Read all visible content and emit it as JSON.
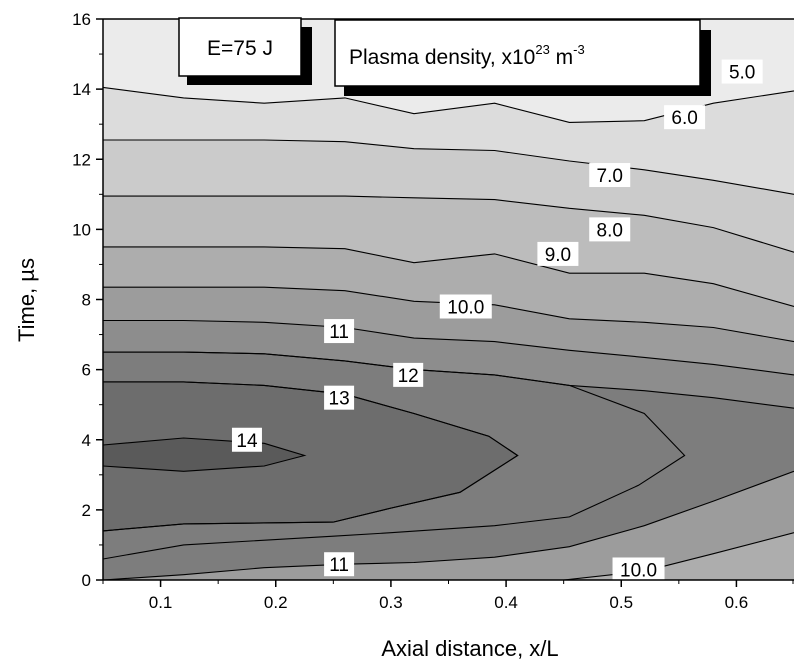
{
  "chart_data": {
    "type": "contour",
    "xlabel": "Axial distance, x/L",
    "ylabel": "Time, µs",
    "xlim": [
      0.05,
      0.65
    ],
    "ylim": [
      0,
      16
    ],
    "x_ticks": [
      "0.1",
      "0.2",
      "0.3",
      "0.4",
      "0.5",
      "0.6"
    ],
    "x_tick_values": [
      0.1,
      0.2,
      0.3,
      0.4,
      0.5,
      0.6
    ],
    "y_ticks": [
      "0",
      "2",
      "4",
      "6",
      "8",
      "10",
      "12",
      "14",
      "16"
    ],
    "y_tick_values": [
      0,
      2,
      4,
      6,
      8,
      10,
      12,
      14,
      16
    ],
    "annotations": {
      "energy": "E=75 J",
      "quantity_prefix": "Plasma density, x10",
      "quantity_exp": "23",
      "quantity_unit": " m",
      "quantity_unit_exp": "-3"
    },
    "levels": [
      {
        "value": 5.0,
        "label": "5.0",
        "fill": "#ebebeb"
      },
      {
        "value": 6.0,
        "label": "6.0",
        "fill": "#dcdcdc"
      },
      {
        "value": 7.0,
        "label": "7.0",
        "fill": "#cbcbcb"
      },
      {
        "value": 8.0,
        "label": "8.0",
        "fill": "#bcbcbc"
      },
      {
        "value": 9.0,
        "label": "9.0",
        "fill": "#adadad"
      },
      {
        "value": 10.0,
        "label": "10.0",
        "fill": "#9c9c9c"
      },
      {
        "value": 11,
        "label": "11",
        "fill": "#8d8d8d"
      },
      {
        "value": 12,
        "label": "12",
        "fill": "#7d7d7d"
      },
      {
        "value": 13,
        "label": "13",
        "fill": "#6d6d6d"
      },
      {
        "value": 14,
        "label": "14",
        "fill": "#5a5a5a"
      }
    ],
    "contours": [
      {
        "level": "5.0",
        "points": [
          [
            0.05,
            14.05
          ],
          [
            0.12,
            13.75
          ],
          [
            0.19,
            13.6
          ],
          [
            0.26,
            13.75
          ],
          [
            0.32,
            13.3
          ],
          [
            0.39,
            13.6
          ],
          [
            0.455,
            13.05
          ],
          [
            0.52,
            13.1
          ],
          [
            0.58,
            13.6
          ],
          [
            0.65,
            13.95
          ]
        ]
      },
      {
        "level": "6.0",
        "points": [
          [
            0.05,
            12.55
          ],
          [
            0.12,
            12.55
          ],
          [
            0.19,
            12.55
          ],
          [
            0.26,
            12.5
          ],
          [
            0.32,
            12.3
          ],
          [
            0.39,
            12.25
          ],
          [
            0.455,
            11.95
          ],
          [
            0.52,
            11.7
          ],
          [
            0.58,
            11.4
          ],
          [
            0.65,
            11.0
          ]
        ]
      },
      {
        "level": "7.0",
        "points": [
          [
            0.05,
            10.95
          ],
          [
            0.12,
            10.95
          ],
          [
            0.19,
            10.95
          ],
          [
            0.26,
            10.95
          ],
          [
            0.32,
            10.9
          ],
          [
            0.39,
            10.85
          ],
          [
            0.455,
            10.6
          ],
          [
            0.52,
            10.4
          ],
          [
            0.58,
            10.05
          ],
          [
            0.65,
            9.35
          ]
        ]
      },
      {
        "level": "8.0",
        "points": [
          [
            0.05,
            9.5
          ],
          [
            0.12,
            9.5
          ],
          [
            0.19,
            9.5
          ],
          [
            0.26,
            9.45
          ],
          [
            0.32,
            9.05
          ],
          [
            0.39,
            9.3
          ],
          [
            0.455,
            8.75
          ],
          [
            0.52,
            8.75
          ],
          [
            0.58,
            8.45
          ],
          [
            0.65,
            7.8
          ]
        ]
      },
      {
        "level": "9.0",
        "points": [
          [
            0.05,
            8.35
          ],
          [
            0.12,
            8.35
          ],
          [
            0.19,
            8.35
          ],
          [
            0.26,
            8.25
          ],
          [
            0.32,
            7.95
          ],
          [
            0.39,
            7.85
          ],
          [
            0.455,
            7.45
          ],
          [
            0.52,
            7.35
          ],
          [
            0.58,
            7.2
          ],
          [
            0.65,
            6.8
          ]
        ]
      },
      {
        "level": "10.0",
        "points": [
          [
            0.05,
            7.4
          ],
          [
            0.12,
            7.4
          ],
          [
            0.19,
            7.35
          ],
          [
            0.26,
            7.2
          ],
          [
            0.32,
            6.9
          ],
          [
            0.39,
            6.8
          ],
          [
            0.455,
            6.55
          ],
          [
            0.52,
            6.35
          ],
          [
            0.58,
            6.15
          ],
          [
            0.65,
            5.85
          ]
        ]
      },
      {
        "level": "11",
        "points": [
          [
            0.05,
            6.5
          ],
          [
            0.12,
            6.5
          ],
          [
            0.19,
            6.45
          ],
          [
            0.26,
            6.25
          ],
          [
            0.32,
            6.0
          ],
          [
            0.39,
            5.85
          ],
          [
            0.455,
            5.55
          ],
          [
            0.52,
            5.4
          ],
          [
            0.58,
            5.2
          ],
          [
            0.65,
            4.9
          ]
        ]
      },
      {
        "level": "12",
        "points": [
          [
            0.05,
            5.65
          ],
          [
            0.12,
            5.65
          ],
          [
            0.19,
            5.55
          ],
          [
            0.26,
            5.3
          ],
          [
            0.32,
            4.75
          ],
          [
            0.385,
            4.1
          ],
          [
            0.41,
            3.55
          ],
          [
            0.36,
            2.5
          ],
          [
            0.3,
            2.05
          ],
          [
            0.25,
            1.65
          ],
          [
            0.12,
            1.6
          ],
          [
            0.05,
            1.4
          ]
        ]
      },
      {
        "level": "13",
        "points": [
          [
            0.05,
            5.65
          ],
          [
            0.12,
            5.65
          ],
          [
            0.19,
            5.55
          ],
          [
            0.26,
            5.3
          ],
          [
            0.32,
            4.75
          ],
          [
            0.385,
            4.1
          ],
          [
            0.41,
            3.55
          ],
          [
            0.36,
            2.5
          ],
          [
            0.3,
            2.05
          ],
          [
            0.25,
            1.65
          ],
          [
            0.12,
            1.6
          ],
          [
            0.05,
            1.4
          ]
        ]
      },
      {
        "level": "14",
        "points": [
          [
            0.05,
            3.85
          ],
          [
            0.12,
            4.05
          ],
          [
            0.19,
            3.9
          ],
          [
            0.225,
            3.55
          ],
          [
            0.19,
            3.25
          ],
          [
            0.12,
            3.1
          ],
          [
            0.05,
            3.25
          ]
        ]
      },
      {
        "level": "12-outer",
        "points": [
          [
            0.05,
            6.5
          ],
          [
            0.12,
            6.5
          ],
          [
            0.19,
            6.45
          ],
          [
            0.26,
            6.25
          ],
          [
            0.32,
            6.0
          ],
          [
            0.39,
            5.85
          ],
          [
            0.455,
            5.55
          ],
          [
            0.52,
            4.75
          ],
          [
            0.555,
            3.55
          ],
          [
            0.515,
            2.7
          ],
          [
            0.455,
            1.8
          ],
          [
            0.39,
            1.55
          ],
          [
            0.3,
            1.35
          ],
          [
            0.25,
            1.25
          ],
          [
            0.12,
            1.0
          ],
          [
            0.05,
            0.6
          ]
        ]
      },
      {
        "level": "11-bottom",
        "points": [
          [
            0.05,
            0.0
          ],
          [
            0.12,
            0.15
          ],
          [
            0.19,
            0.35
          ],
          [
            0.26,
            0.45
          ],
          [
            0.32,
            0.5
          ],
          [
            0.39,
            0.65
          ],
          [
            0.455,
            0.95
          ],
          [
            0.52,
            1.55
          ],
          [
            0.58,
            2.25
          ],
          [
            0.65,
            3.1
          ]
        ]
      },
      {
        "level": "10-bottom",
        "points": [
          [
            0.45,
            0.0
          ],
          [
            0.52,
            0.25
          ],
          [
            0.58,
            0.75
          ],
          [
            0.65,
            1.35
          ]
        ]
      }
    ],
    "contour_label_positions": [
      {
        "label": "5.0",
        "x": 0.605,
        "y": 14.5
      },
      {
        "label": "6.0",
        "x": 0.555,
        "y": 13.2
      },
      {
        "label": "7.0",
        "x": 0.49,
        "y": 11.55
      },
      {
        "label": "8.0",
        "x": 0.49,
        "y": 10.0
      },
      {
        "label": "9.0",
        "x": 0.445,
        "y": 9.3
      },
      {
        "label": "10.0",
        "x": 0.365,
        "y": 7.8
      },
      {
        "label": "11",
        "x": 0.255,
        "y": 7.1
      },
      {
        "label": "12",
        "x": 0.315,
        "y": 5.85
      },
      {
        "label": "13",
        "x": 0.255,
        "y": 5.2
      },
      {
        "label": "14",
        "x": 0.175,
        "y": 4.0
      },
      {
        "label": "11",
        "x": 0.255,
        "y": 0.45
      },
      {
        "label": "10.0",
        "x": 0.515,
        "y": 0.3
      }
    ]
  }
}
